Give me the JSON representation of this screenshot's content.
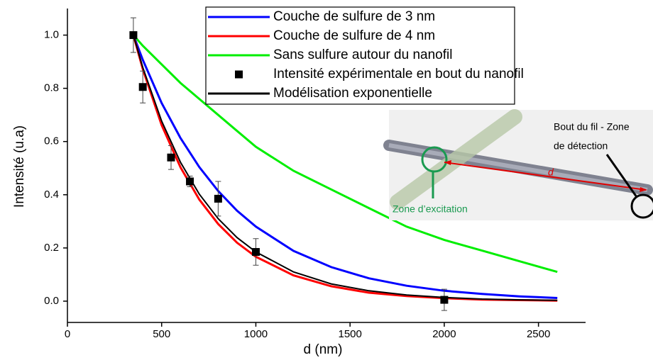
{
  "chart_data": {
    "type": "line",
    "xlabel": "d (nm)",
    "ylabel": "Intensité (u.a)",
    "xlim": [
      0,
      2750
    ],
    "ylim": [
      -0.08,
      1.1
    ],
    "xticks": [
      0,
      500,
      1000,
      1500,
      2000,
      2500
    ],
    "yticks": [
      {
        "value": 0,
        "label": "0.0"
      },
      0.2,
      0.4,
      0.6,
      0.8,
      {
        "value": 1,
        "label": "1.0"
      }
    ],
    "grid": false,
    "legend": "top-right",
    "series": [
      {
        "name": "Couche de sulfure de 3 nm",
        "color": "#0000ff",
        "style": "line",
        "x": [
          350,
          400,
          500,
          600,
          700,
          800,
          900,
          1000,
          1200,
          1400,
          1600,
          1800,
          2000,
          2200,
          2400,
          2600
        ],
        "values": [
          1,
          0.907,
          0.745,
          0.613,
          0.504,
          0.414,
          0.34,
          0.28,
          0.189,
          0.128,
          0.086,
          0.058,
          0.039,
          0.027,
          0.018,
          0.012
        ]
      },
      {
        "name": "Couche de sulfure de 4 nm",
        "color": "#ff0000",
        "style": "line",
        "x": [
          350,
          400,
          500,
          600,
          700,
          800,
          900,
          1000,
          1200,
          1400,
          1600,
          1800,
          2000,
          2200,
          2400,
          2600
        ],
        "values": [
          1,
          0.872,
          0.662,
          0.503,
          0.382,
          0.29,
          0.22,
          0.167,
          0.097,
          0.056,
          0.032,
          0.019,
          0.011,
          0.006,
          0.004,
          0.002
        ]
      },
      {
        "name": "Sans sulfure autour du nanofil",
        "color": "#00ee00",
        "style": "line",
        "x": [
          350,
          400,
          500,
          600,
          700,
          800,
          900,
          1000,
          1200,
          1400,
          1600,
          1800,
          2000,
          2200,
          2400,
          2600
        ],
        "values": [
          1,
          0.96,
          0.89,
          0.82,
          0.76,
          0.7,
          0.64,
          0.58,
          0.49,
          0.42,
          0.35,
          0.28,
          0.23,
          0.19,
          0.15,
          0.11
        ]
      },
      {
        "name": "Intensité expérimentale en bout du nanofil",
        "color": "#000000",
        "style": "markers",
        "x": [
          350,
          400,
          550,
          650,
          800,
          1000,
          2000
        ],
        "values": [
          1,
          0.805,
          0.54,
          0.45,
          0.385,
          0.185,
          0.005
        ],
        "errors": [
          0.065,
          0.06,
          0.045,
          0.02,
          0.065,
          0.05,
          0.04
        ]
      },
      {
        "name": "Modélisation exponentielle",
        "color": "#000000",
        "style": "line",
        "x": [
          350,
          400,
          500,
          600,
          700,
          800,
          900,
          1000,
          1200,
          1400,
          1600,
          1800,
          2000,
          2200,
          2400,
          2600
        ],
        "values": [
          1,
          0.878,
          0.677,
          0.522,
          0.402,
          0.31,
          0.239,
          0.185,
          0.11,
          0.065,
          0.039,
          0.023,
          0.014,
          0.008,
          0.005,
          0.003
        ]
      }
    ],
    "annotations": [
      "Bout du fil - Zone",
      "de détection",
      "d",
      "Zone d’excitation"
    ]
  }
}
